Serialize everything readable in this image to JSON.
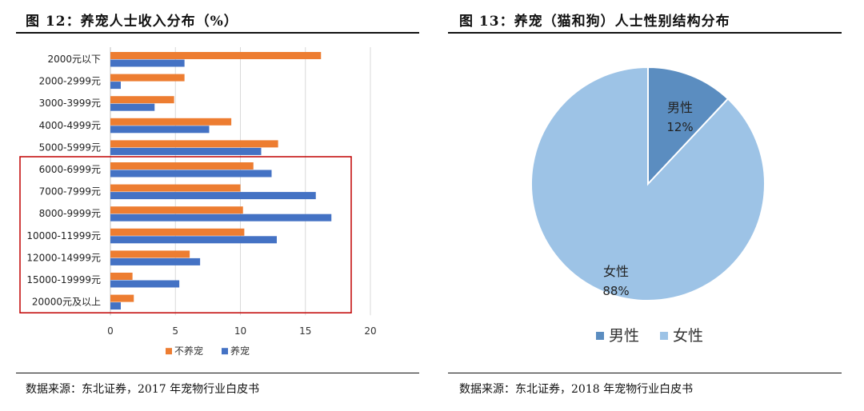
{
  "colors": {
    "not_pet": "#ED7D31",
    "pet": "#4472C4",
    "male": "#5B8DC0",
    "female": "#9DC3E6",
    "highlight_box": "#C00000",
    "grid": "#D9D9D9"
  },
  "left": {
    "title": "图 12：养宠人士收入分布（%）",
    "source": "数据来源：东北证券，2017 年宠物行业白皮书"
  },
  "right": {
    "title": "图 13：养宠（猫和狗）人士性别结构分布",
    "source": "数据来源：东北证券，2018 年宠物行业白皮书"
  },
  "chart_data": [
    {
      "type": "bar",
      "orientation": "horizontal",
      "title": "养宠人士收入分布（%）",
      "categories": [
        "2000元以下",
        "2000-2999元",
        "3000-3999元",
        "4000-4999元",
        "5000-5999元",
        "6000-6999元",
        "7000-7999元",
        "8000-9999元",
        "10000-11999元",
        "12000-14999元",
        "15000-19999元",
        "20000元及以上"
      ],
      "series": [
        {
          "name": "不养宠",
          "values": [
            16.2,
            5.7,
            4.9,
            9.3,
            12.9,
            11.0,
            10.0,
            10.2,
            10.3,
            6.1,
            1.7,
            1.8
          ]
        },
        {
          "name": "养宠",
          "values": [
            5.7,
            0.8,
            3.4,
            7.6,
            11.6,
            12.4,
            15.8,
            17.0,
            12.8,
            6.9,
            5.3,
            0.8
          ]
        }
      ],
      "x_ticks": [
        0,
        5,
        10,
        15,
        20
      ],
      "xlim": [
        0,
        20
      ],
      "legend": [
        "不养宠",
        "养宠"
      ],
      "legend_position": "bottom",
      "highlight_range": [
        "6000-6999元",
        "20000元及以上"
      ]
    },
    {
      "type": "pie",
      "title": "养宠（猫和狗）人士性别结构分布",
      "slices": [
        {
          "label": "男性",
          "value": 12,
          "display": "12%"
        },
        {
          "label": "女性",
          "value": 88,
          "display": "88%"
        }
      ],
      "legend": [
        "男性",
        "女性"
      ],
      "legend_position": "bottom"
    }
  ]
}
